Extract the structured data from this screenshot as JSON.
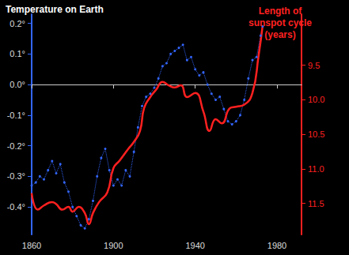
{
  "chart_data": {
    "type": "line",
    "y_label": "Temperature on Earth",
    "y2_label": "Length of\nsunspot cycle\n(years)",
    "xlim": [
      1860,
      1992
    ],
    "xticks": [
      1860,
      1900,
      1940,
      1980
    ],
    "ylim": [
      -0.49,
      0.23
    ],
    "yticks": [
      {
        "value": 0.2,
        "label": "0.2°"
      },
      {
        "value": 0.1,
        "label": "0.1°"
      },
      {
        "value": 0.0,
        "label": "0.0°"
      },
      {
        "value": -0.1,
        "label": "-0.1°"
      },
      {
        "value": -0.2,
        "label": "-0.2°"
      },
      {
        "value": -0.3,
        "label": "-0.3°"
      },
      {
        "value": -0.4,
        "label": "-0.4°"
      }
    ],
    "y2lim": [
      8.76,
      11.95
    ],
    "y2ticks": [
      9.5,
      {
        "value": 10,
        "label": "10.0"
      },
      10.5,
      {
        "value": 11,
        "label": "11.0"
      },
      11.5
    ],
    "grid": false,
    "series": [
      {
        "color": "#3366ff",
        "axis": "y",
        "marker": "circle",
        "line_style": "dotted",
        "x": [
          1860,
          1862,
          1864,
          1866,
          1868,
          1870,
          1872,
          1874,
          1876,
          1878,
          1880,
          1882,
          1884,
          1886,
          1888,
          1890,
          1892,
          1894,
          1896,
          1898,
          1900,
          1902,
          1904,
          1906,
          1908,
          1910,
          1912,
          1914,
          1916,
          1918,
          1920,
          1922,
          1924,
          1926,
          1928,
          1930,
          1932,
          1934,
          1936,
          1938,
          1940,
          1942,
          1944,
          1946,
          1948,
          1950,
          1952,
          1954,
          1956,
          1958,
          1960,
          1962,
          1964,
          1966,
          1968,
          1970,
          1972,
          1973
        ],
        "values": [
          -0.33,
          -0.32,
          -0.3,
          -0.31,
          -0.28,
          -0.25,
          -0.29,
          -0.26,
          -0.32,
          -0.35,
          -0.4,
          -0.43,
          -0.46,
          -0.47,
          -0.44,
          -0.38,
          -0.3,
          -0.24,
          -0.21,
          -0.28,
          -0.33,
          -0.31,
          -0.33,
          -0.28,
          -0.3,
          -0.22,
          -0.14,
          -0.07,
          -0.04,
          -0.03,
          -0.01,
          0.02,
          0.06,
          0.07,
          0.1,
          0.11,
          0.12,
          0.13,
          0.08,
          0.09,
          0.05,
          0.03,
          0.04,
          0.0,
          -0.03,
          -0.05,
          -0.04,
          -0.08,
          -0.12,
          -0.13,
          -0.12,
          -0.1,
          -0.05,
          0.02,
          0.08,
          0.09,
          0.16,
          0.19
        ]
      },
      {
        "color": "#ff2020",
        "axis": "y2",
        "marker": "none",
        "line_style": "solid",
        "x": [
          1860,
          1863,
          1866,
          1870,
          1872,
          1875,
          1878,
          1880,
          1883,
          1886,
          1888,
          1890,
          1893,
          1897,
          1900,
          1903,
          1907,
          1910,
          1913,
          1915,
          1918,
          1921,
          1924,
          1927,
          1930,
          1933,
          1936,
          1940,
          1944,
          1947,
          1950,
          1953,
          1957,
          1960,
          1964,
          1968,
          1971,
          1973
        ],
        "values": [
          11.35,
          11.59,
          11.53,
          11.48,
          11.51,
          11.59,
          11.55,
          11.62,
          11.55,
          11.64,
          11.8,
          11.64,
          11.48,
          11.34,
          10.99,
          10.88,
          10.72,
          10.61,
          10.45,
          10.12,
          9.96,
          9.85,
          9.74,
          9.79,
          9.82,
          9.79,
          9.96,
          9.9,
          10.17,
          10.45,
          10.28,
          10.34,
          10.12,
          10.1,
          10.07,
          9.9,
          9.36,
          8.92
        ]
      }
    ]
  }
}
